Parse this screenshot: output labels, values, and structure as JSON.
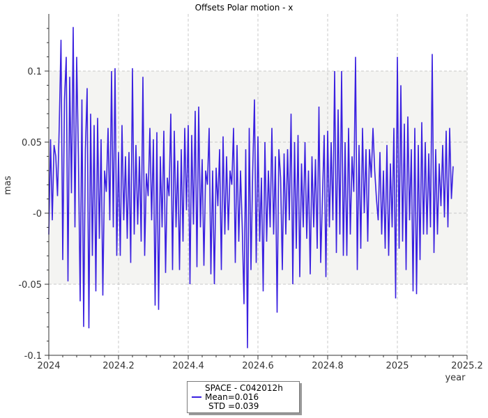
{
  "chart_data": {
    "type": "line",
    "title": "Offsets Polar motion - x",
    "xlabel": "year",
    "ylabel": "mas",
    "xlim": [
      2024.0,
      2025.2
    ],
    "ylim": [
      -0.1,
      0.14
    ],
    "x_ticks": [
      "2024",
      "2024.2",
      "2024.4",
      "2024.6",
      "2024.8",
      "2025",
      "2025.2"
    ],
    "y_ticks": [
      "0.1",
      "0.05",
      "-0",
      "-0.05",
      "-0.1"
    ],
    "grid": true,
    "band": [
      -0.05,
      0.1
    ],
    "legend_placement": "bottom-center",
    "colors": {
      "series": "#3a20e0",
      "band": "#f4f4f2",
      "grid": "#c8c8c8"
    },
    "series": [
      {
        "name": "SPACE - C042012h",
        "x": [
          2024.0,
          2024.005,
          2024.01,
          2024.015,
          2024.02,
          2024.025,
          2024.03,
          2024.035,
          2024.04,
          2024.045,
          2024.05,
          2024.055,
          2024.06,
          2024.065,
          2024.07,
          2024.075,
          2024.08,
          2024.085,
          2024.09,
          2024.095,
          2024.1,
          2024.105,
          2024.11,
          2024.115,
          2024.12,
          2024.125,
          2024.13,
          2024.135,
          2024.14,
          2024.145,
          2024.15,
          2024.155,
          2024.16,
          2024.165,
          2024.17,
          2024.175,
          2024.18,
          2024.185,
          2024.19,
          2024.195,
          2024.2,
          2024.205,
          2024.21,
          2024.215,
          2024.22,
          2024.225,
          2024.23,
          2024.235,
          2024.24,
          2024.245,
          2024.25,
          2024.255,
          2024.26,
          2024.265,
          2024.27,
          2024.275,
          2024.28,
          2024.285,
          2024.29,
          2024.295,
          2024.3,
          2024.305,
          2024.31,
          2024.315,
          2024.32,
          2024.325,
          2024.33,
          2024.335,
          2024.34,
          2024.345,
          2024.35,
          2024.355,
          2024.36,
          2024.365,
          2024.37,
          2024.375,
          2024.38,
          2024.385,
          2024.39,
          2024.395,
          2024.4,
          2024.405,
          2024.41,
          2024.415,
          2024.42,
          2024.425,
          2024.43,
          2024.435,
          2024.44,
          2024.445,
          2024.45,
          2024.455,
          2024.46,
          2024.465,
          2024.47,
          2024.475,
          2024.48,
          2024.485,
          2024.49,
          2024.495,
          2024.5,
          2024.505,
          2024.51,
          2024.515,
          2024.52,
          2024.525,
          2024.53,
          2024.535,
          2024.54,
          2024.545,
          2024.55,
          2024.555,
          2024.56,
          2024.565,
          2024.57,
          2024.575,
          2024.58,
          2024.585,
          2024.59,
          2024.595,
          2024.6,
          2024.605,
          2024.61,
          2024.615,
          2024.62,
          2024.625,
          2024.63,
          2024.635,
          2024.64,
          2024.645,
          2024.65,
          2024.655,
          2024.66,
          2024.665,
          2024.67,
          2024.675,
          2024.68,
          2024.685,
          2024.69,
          2024.695,
          2024.7,
          2024.705,
          2024.71,
          2024.715,
          2024.72,
          2024.725,
          2024.73,
          2024.735,
          2024.74,
          2024.745,
          2024.75,
          2024.755,
          2024.76,
          2024.765,
          2024.77,
          2024.775,
          2024.78,
          2024.785,
          2024.79,
          2024.795,
          2024.8,
          2024.805,
          2024.81,
          2024.815,
          2024.82,
          2024.825,
          2024.83,
          2024.835,
          2024.84,
          2024.845,
          2024.85,
          2024.855,
          2024.86,
          2024.865,
          2024.87,
          2024.875,
          2024.88,
          2024.885,
          2024.89,
          2024.895,
          2024.9,
          2024.905,
          2024.91,
          2024.915,
          2024.92,
          2024.925,
          2024.93,
          2024.935,
          2024.94,
          2024.945,
          2024.95,
          2024.955,
          2024.96,
          2024.965,
          2024.97,
          2024.975,
          2024.98,
          2024.985,
          2024.99,
          2024.995,
          2025.0,
          2025.005,
          2025.01,
          2025.015,
          2025.02,
          2025.025,
          2025.03,
          2025.035,
          2025.04,
          2025.045,
          2025.05,
          2025.055,
          2025.06,
          2025.065,
          2025.07,
          2025.075,
          2025.08,
          2025.085,
          2025.09,
          2025.095,
          2025.1,
          2025.105,
          2025.11,
          2025.115,
          2025.12,
          2025.125,
          2025.13,
          2025.135,
          2025.14,
          2025.145,
          2025.15,
          2025.155,
          2025.16
        ],
        "values": [
          -0.015,
          0.052,
          -0.005,
          0.048,
          0.04,
          0.012,
          0.062,
          0.122,
          -0.033,
          0.08,
          0.11,
          -0.048,
          0.096,
          0.014,
          0.131,
          -0.01,
          0.11,
          0.04,
          -0.062,
          0.08,
          -0.08,
          0.045,
          0.088,
          -0.081,
          0.07,
          -0.03,
          0.062,
          -0.055,
          0.067,
          -0.018,
          0.052,
          -0.058,
          0.03,
          0.015,
          0.06,
          -0.005,
          0.1,
          -0.01,
          0.102,
          -0.03,
          0.043,
          -0.03,
          0.062,
          -0.005,
          0.04,
          -0.018,
          0.043,
          -0.035,
          0.102,
          -0.015,
          0.048,
          -0.008,
          0.04,
          -0.02,
          0.096,
          -0.03,
          0.028,
          0.012,
          0.06,
          -0.005,
          0.052,
          -0.065,
          0.057,
          -0.068,
          0.04,
          -0.01,
          0.058,
          -0.042,
          0.025,
          0.012,
          0.07,
          -0.04,
          0.058,
          -0.01,
          0.037,
          -0.04,
          0.045,
          -0.02,
          0.06,
          0.002,
          0.062,
          -0.05,
          0.055,
          -0.008,
          0.072,
          -0.038,
          0.075,
          -0.01,
          0.038,
          -0.037,
          0.03,
          0.02,
          0.06,
          -0.043,
          0.03,
          -0.05,
          0.032,
          0.005,
          0.045,
          -0.04,
          0.054,
          -0.015,
          0.04,
          -0.012,
          0.03,
          0.02,
          0.06,
          -0.035,
          0.048,
          -0.02,
          0.03,
          -0.01,
          -0.064,
          0.045,
          -0.095,
          0.06,
          -0.04,
          0.03,
          0.08,
          -0.035,
          0.054,
          -0.02,
          0.025,
          -0.055,
          0.05,
          -0.02,
          0.03,
          -0.01,
          0.06,
          -0.015,
          0.04,
          -0.07,
          0.045,
          0.025,
          -0.04,
          0.042,
          -0.015,
          0.045,
          -0.005,
          0.07,
          -0.05,
          0.05,
          -0.025,
          0.055,
          -0.045,
          0.035,
          -0.01,
          0.05,
          -0.018,
          0.03,
          -0.043,
          0.04,
          -0.01,
          0.038,
          -0.025,
          0.075,
          -0.035,
          0.01,
          0.055,
          -0.045,
          0.058,
          -0.01,
          0.05,
          -0.005,
          0.1,
          -0.028,
          0.073,
          -0.015,
          0.1,
          -0.03,
          0.05,
          -0.03,
          0.06,
          -0.015,
          0.04,
          0.015,
          0.11,
          -0.04,
          0.048,
          -0.025,
          0.06,
          0.0,
          0.045,
          -0.02,
          0.045,
          0.025,
          0.06,
          0.03,
          0.01,
          -0.005,
          0.043,
          -0.015,
          0.03,
          -0.025,
          0.048,
          -0.03,
          0.035,
          -0.01,
          0.06,
          -0.06,
          0.11,
          -0.025,
          0.09,
          -0.02,
          0.063,
          -0.04,
          0.068,
          -0.005,
          0.045,
          -0.055,
          0.06,
          -0.057,
          0.048,
          -0.033,
          0.064,
          -0.015,
          0.05,
          -0.015,
          0.042,
          -0.01,
          0.112,
          -0.028,
          0.045,
          -0.015,
          0.035,
          0.005,
          0.048,
          -0.003,
          0.058,
          -0.01,
          0.06,
          0.01,
          0.033
        ]
      }
    ],
    "legend": {
      "name": "SPACE - C042012h",
      "mean": "Mean=0.016",
      "std": "STD =0.039"
    }
  }
}
